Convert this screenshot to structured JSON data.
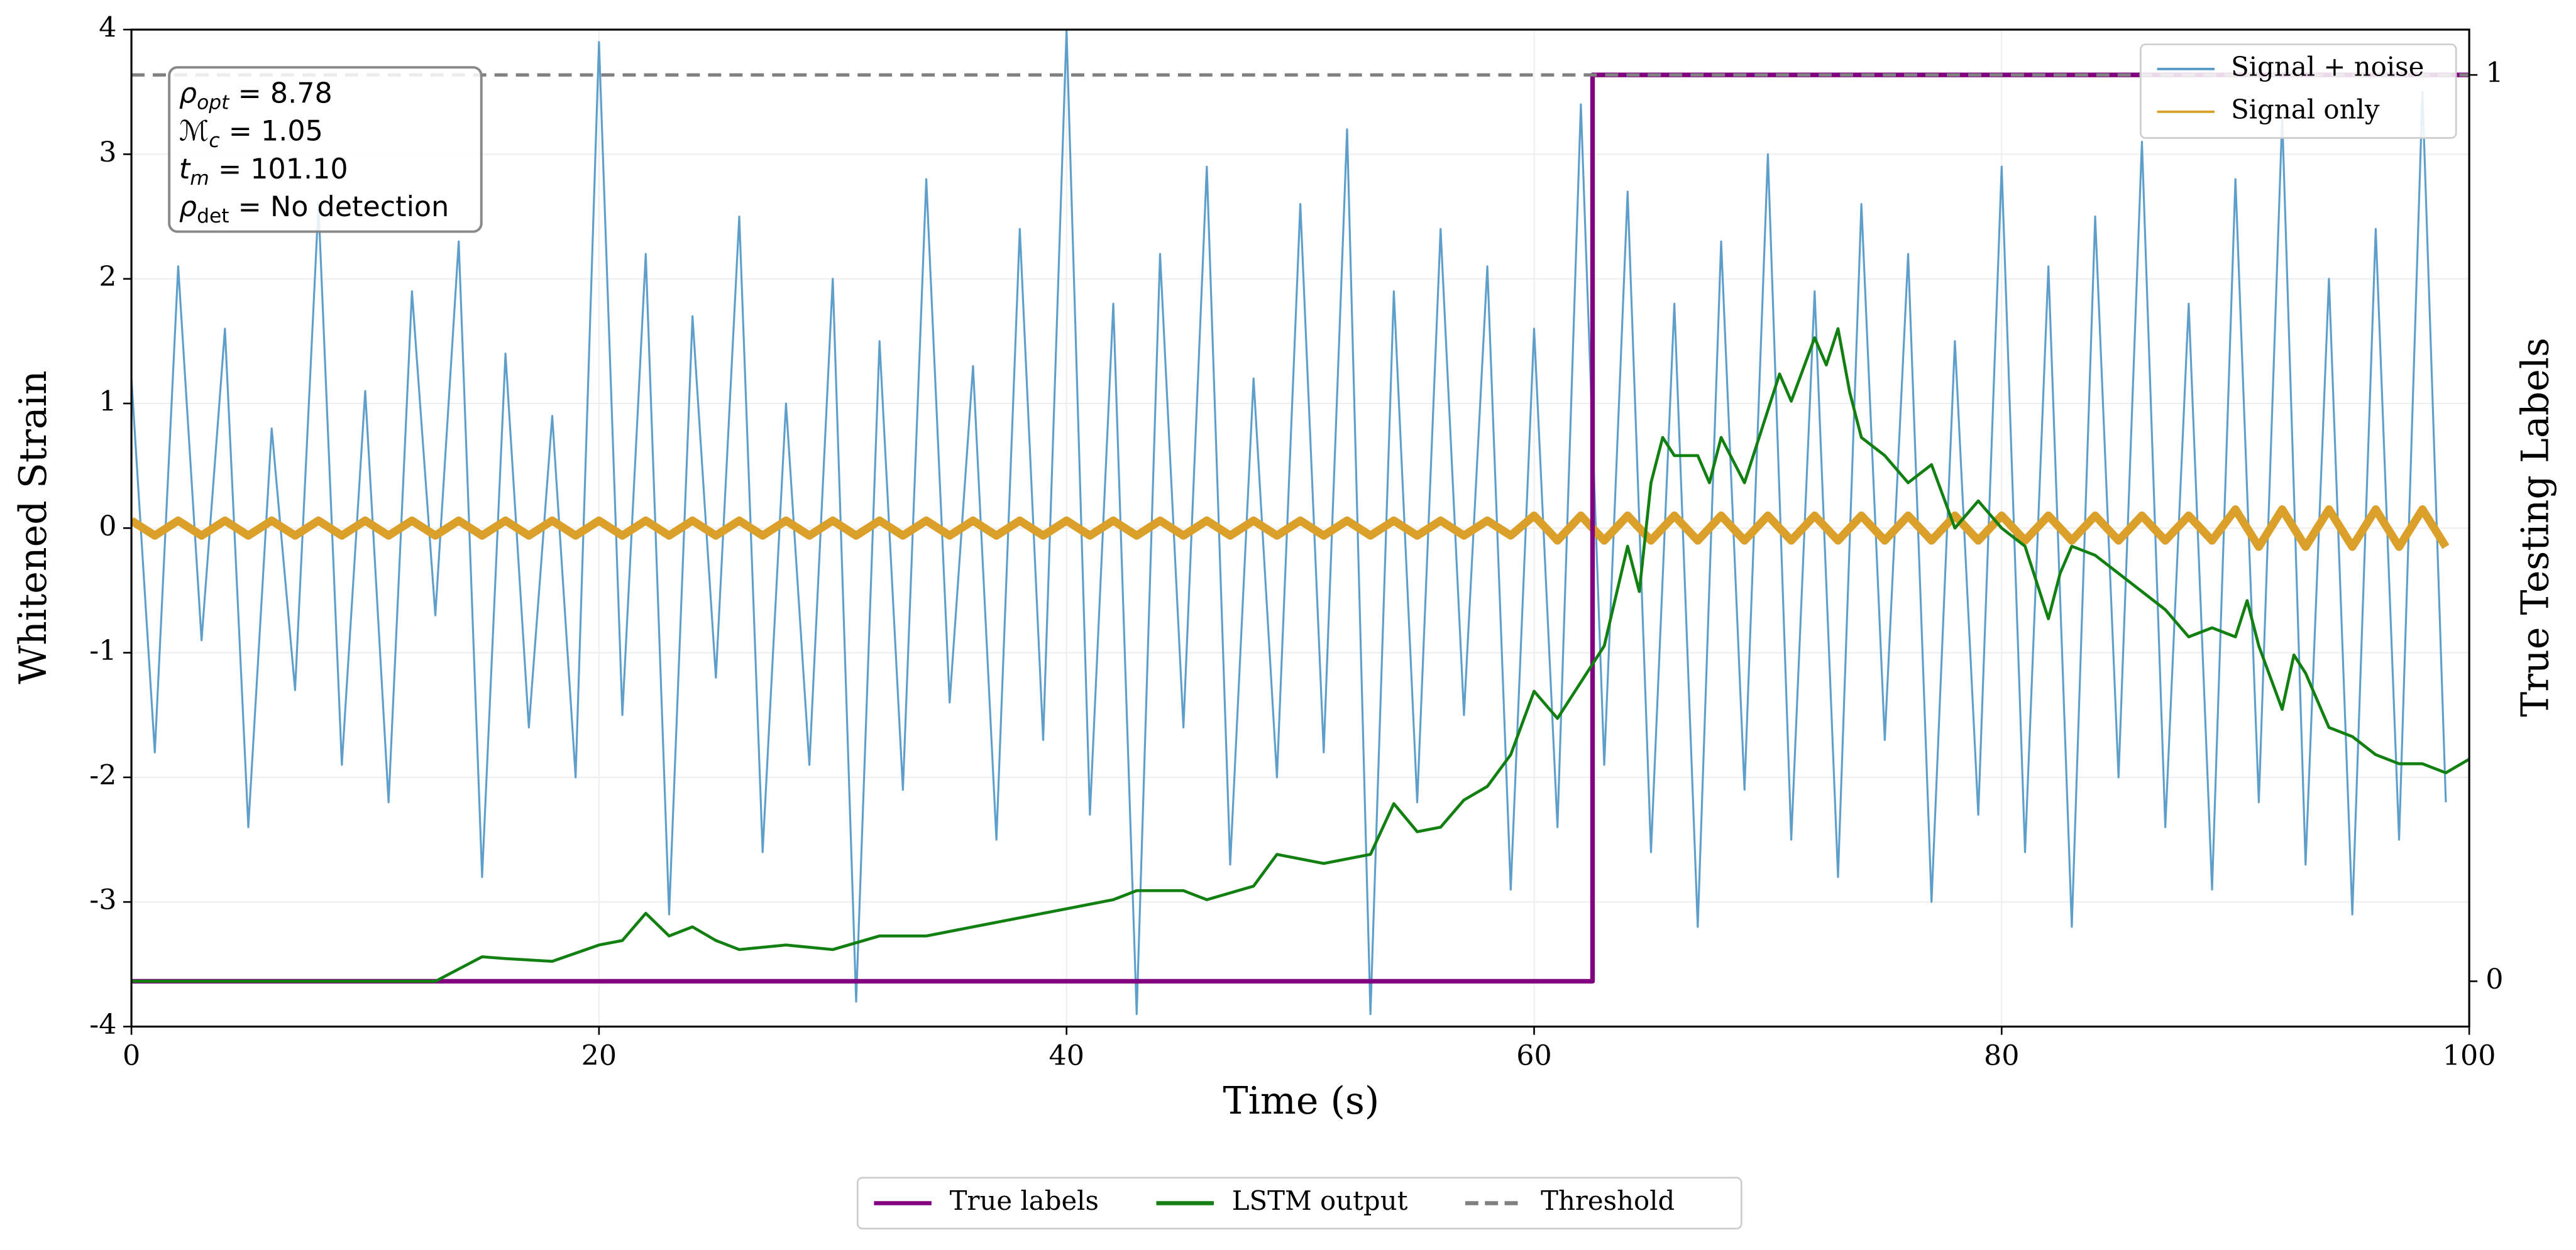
{
  "chart_data": {
    "type": "line",
    "xlabel": "Time (s)",
    "ylabel": "Whitened Strain",
    "y2label": "True Testing Labels",
    "xlim": [
      0,
      100
    ],
    "ylim": [
      -4,
      4
    ],
    "y2lim": [
      -0.05,
      1.05
    ],
    "xticks": [
      0,
      20,
      40,
      60,
      80,
      100
    ],
    "yticks": [
      -4,
      -3,
      -2,
      -1,
      0,
      1,
      2,
      3,
      4
    ],
    "y2ticks": [
      0,
      1
    ],
    "grid": true,
    "x": [
      0,
      1,
      2,
      3,
      4,
      5,
      6,
      7,
      8,
      9,
      10,
      11,
      12,
      13,
      14,
      15,
      16,
      17,
      18,
      19,
      20,
      21,
      22,
      23,
      24,
      25,
      26,
      27,
      28,
      29,
      30,
      31,
      32,
      33,
      34,
      35,
      36,
      37,
      38,
      39,
      40,
      41,
      42,
      43,
      44,
      45,
      46,
      47,
      48,
      49,
      50,
      51,
      52,
      53,
      54,
      55,
      56,
      57,
      58,
      59,
      60,
      61,
      62,
      63,
      64,
      65,
      66,
      67,
      68,
      69,
      70,
      71,
      72,
      73,
      74,
      75,
      76,
      77,
      78,
      79,
      80,
      81,
      82,
      83,
      84,
      85,
      86,
      87,
      88,
      89,
      90,
      91,
      92,
      93,
      94,
      95,
      96,
      97,
      98,
      99
    ],
    "series": [
      {
        "name": "Signal + noise",
        "color": "#5599c7",
        "legend": "upper right",
        "values": [
          1.2,
          -1.8,
          2.1,
          -0.9,
          1.6,
          -2.4,
          0.8,
          -1.3,
          2.6,
          -1.9,
          1.1,
          -2.2,
          1.9,
          -0.7,
          2.3,
          -2.8,
          1.4,
          -1.6,
          0.9,
          -2.0,
          3.9,
          -1.5,
          2.2,
          -3.1,
          1.7,
          -1.2,
          2.5,
          -2.6,
          1.0,
          -1.9,
          2.0,
          -3.8,
          1.5,
          -2.1,
          2.8,
          -1.4,
          1.3,
          -2.5,
          2.4,
          -1.7,
          4.0,
          -2.3,
          1.8,
          -3.9,
          2.2,
          -1.6,
          2.9,
          -2.7,
          1.2,
          -2.0,
          2.6,
          -1.8,
          3.2,
          -3.9,
          1.9,
          -2.2,
          2.4,
          -1.5,
          2.1,
          -2.9,
          1.6,
          -2.4,
          3.4,
          -1.9,
          2.7,
          -2.6,
          1.8,
          -3.2,
          2.3,
          -2.1,
          3.0,
          -2.5,
          1.9,
          -2.8,
          2.6,
          -1.7,
          2.2,
          -3.0,
          1.5,
          -2.3,
          2.9,
          -2.6,
          2.1,
          -3.2,
          2.5,
          -2.0,
          3.1,
          -2.4,
          1.8,
          -2.9,
          2.8,
          -2.2,
          3.3,
          -2.7,
          2.0,
          -3.1,
          2.4,
          -2.5,
          3.5,
          -2.2
        ]
      },
      {
        "name": "Signal only",
        "color": "#daa02a",
        "legend": "upper right",
        "values": [
          0.06,
          -0.06,
          0.06,
          -0.06,
          0.06,
          -0.06,
          0.06,
          -0.06,
          0.06,
          -0.06,
          0.06,
          -0.06,
          0.06,
          -0.06,
          0.06,
          -0.06,
          0.06,
          -0.06,
          0.06,
          -0.06,
          0.06,
          -0.06,
          0.06,
          -0.06,
          0.06,
          -0.06,
          0.06,
          -0.06,
          0.06,
          -0.06,
          0.06,
          -0.06,
          0.06,
          -0.06,
          0.06,
          -0.06,
          0.06,
          -0.06,
          0.06,
          -0.06,
          0.06,
          -0.06,
          0.06,
          -0.06,
          0.06,
          -0.06,
          0.06,
          -0.06,
          0.06,
          -0.06,
          0.06,
          -0.06,
          0.06,
          -0.06,
          0.06,
          -0.06,
          0.06,
          -0.06,
          0.06,
          -0.06,
          0.1,
          -0.1,
          0.1,
          -0.1,
          0.1,
          -0.1,
          0.1,
          -0.1,
          0.1,
          -0.1,
          0.1,
          -0.1,
          0.1,
          -0.1,
          0.1,
          -0.1,
          0.1,
          -0.1,
          0.1,
          -0.1,
          0.1,
          -0.1,
          0.1,
          -0.1,
          0.1,
          -0.1,
          0.1,
          -0.1,
          0.1,
          -0.1,
          0.15,
          -0.15,
          0.15,
          -0.15,
          0.15,
          -0.15,
          0.15,
          -0.15,
          0.15,
          -0.15
        ]
      },
      {
        "name": "True labels",
        "color": "#800080",
        "legend": "lower center",
        "axis": "y2",
        "x": [
          0,
          62.5,
          62.5,
          100
        ],
        "values": [
          0,
          0,
          1,
          1
        ]
      },
      {
        "name": "LSTM output",
        "color": "#118011",
        "legend": "lower center",
        "axis": "y2",
        "x": [
          0,
          13,
          15,
          16,
          18,
          20,
          21,
          22,
          23,
          24,
          25,
          26,
          28,
          30,
          32,
          34,
          36,
          38,
          40,
          42,
          43,
          45,
          46,
          48,
          49,
          51,
          53,
          54,
          55,
          56,
          57,
          58,
          59,
          60,
          61,
          62,
          63,
          64,
          64.5,
          65,
          65.5,
          66,
          67,
          67.5,
          68,
          69,
          70,
          70.5,
          71,
          72,
          72.5,
          73,
          73.5,
          74,
          75,
          76,
          77,
          78,
          79,
          80,
          81,
          82,
          82.5,
          83,
          84,
          85,
          86,
          87,
          88,
          89,
          90,
          90.5,
          91,
          92,
          92.5,
          93,
          94,
          95,
          96,
          97,
          98,
          99,
          100
        ],
        "values": [
          0,
          0,
          0.027,
          0.025,
          0.022,
          0.04,
          0.045,
          0.075,
          0.05,
          0.06,
          0.045,
          0.035,
          0.04,
          0.035,
          0.05,
          0.05,
          0.06,
          0.07,
          0.08,
          0.09,
          0.1,
          0.1,
          0.09,
          0.105,
          0.14,
          0.13,
          0.14,
          0.196,
          0.165,
          0.17,
          0.2,
          0.215,
          0.25,
          0.32,
          0.29,
          0.33,
          0.37,
          0.48,
          0.43,
          0.55,
          0.6,
          0.58,
          0.58,
          0.55,
          0.6,
          0.55,
          0.63,
          0.67,
          0.64,
          0.71,
          0.68,
          0.72,
          0.65,
          0.6,
          0.58,
          0.55,
          0.57,
          0.5,
          0.53,
          0.5,
          0.48,
          0.4,
          0.45,
          0.48,
          0.47,
          0.45,
          0.43,
          0.41,
          0.38,
          0.39,
          0.38,
          0.42,
          0.37,
          0.3,
          0.36,
          0.34,
          0.28,
          0.27,
          0.25,
          0.24,
          0.24,
          0.23,
          0.245
        ]
      }
    ],
    "threshold": {
      "name": "Threshold",
      "value": 1,
      "color": "#808080",
      "axis": "y2",
      "legend": "lower center"
    },
    "annotations": [
      {
        "symbol": "ρ",
        "sub": "opt",
        "text": " = 8.78"
      },
      {
        "symbol": "ℳ",
        "sub": "c",
        "text": " = 1.05"
      },
      {
        "symbol": "t",
        "sub": "m",
        "text": " = 101.10"
      },
      {
        "symbol": "ρ",
        "sub": "det",
        "text": " = No detection"
      }
    ]
  }
}
